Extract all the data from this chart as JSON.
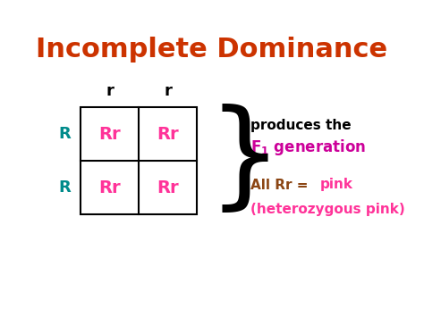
{
  "title": "Incomplete Dominance",
  "title_color": "#CC3300",
  "title_fontsize": 22,
  "bg_color": "#FFFFFF",
  "col_headers": [
    "r",
    "r"
  ],
  "col_header_color": "#000000",
  "row_headers": [
    "R",
    "R"
  ],
  "row_header_color": "#008B8B",
  "cell_color": "#FF3399",
  "cell_fontsize": 14,
  "produces_text": "produces the",
  "produces_color": "#000000",
  "f1_color": "#CC0099",
  "allrr_color": "#8B4513",
  "pink_text": "pink",
  "pink_color": "#FF3399",
  "hetero_text": "(heterozygous pink)",
  "hetero_color": "#FF3399"
}
